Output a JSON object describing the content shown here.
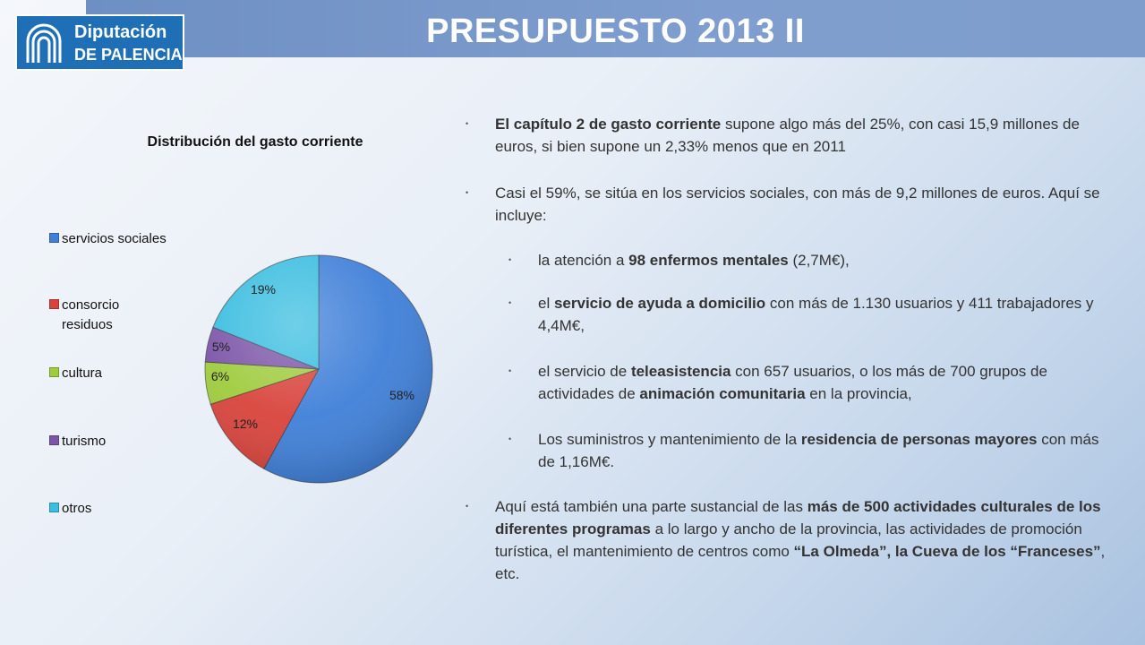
{
  "header": {
    "title": "PRESUPUESTO 2013 II"
  },
  "logo": {
    "line1": "Diputación",
    "line2": "DE PALENCIA",
    "color": "#1f6fb6"
  },
  "chart_data": {
    "type": "pie",
    "title": "Distribución  del gasto corriente",
    "categories": [
      "servicios sociales",
      "consorcio residuos",
      "cultura",
      "turismo",
      "otros"
    ],
    "legend": [
      "servicios sociales",
      "consorcio\nresiduos",
      "cultura",
      "turismo",
      "otros"
    ],
    "values": [
      58,
      12,
      6,
      5,
      19
    ],
    "labels": [
      "58%",
      "12%",
      "6%",
      "5%",
      "19%"
    ],
    "colors": [
      "#3f7fd8",
      "#d8433b",
      "#9fcb3e",
      "#7c55a8",
      "#39bde0"
    ],
    "legend_position": "left"
  },
  "bullets": [
    {
      "level": 1,
      "segments": [
        {
          "text": "El capítulo 2 de gasto corriente",
          "bold": true
        },
        {
          "text": " supone algo más del 25%, con casi 15,9 millones de euros, si bien supone un 2,33% menos que en 2011",
          "bold": false
        }
      ]
    },
    {
      "level": 1,
      "segments": [
        {
          "text": "Casi el 59%,  se sitúa en los servicios sociales, con más de 9,2 millones de euros. Aquí se incluye:",
          "bold": false
        }
      ]
    },
    {
      "level": 2,
      "segments": [
        {
          "text": "la atención a ",
          "bold": false
        },
        {
          "text": "98 enfermos mentales",
          "bold": true
        },
        {
          "text": " (2,7M€),",
          "bold": false
        }
      ]
    },
    {
      "level": 2,
      "segments": [
        {
          "text": " el ",
          "bold": false
        },
        {
          "text": "servicio de ayuda a domicilio",
          "bold": true
        },
        {
          "text": " con más de 1.130 usuarios y 411 trabajadores y 4,4M€,",
          "bold": false
        }
      ]
    },
    {
      "level": 2,
      "segments": [
        {
          "text": "el servicio de ",
          "bold": false
        },
        {
          "text": "teleasistencia",
          "bold": true
        },
        {
          "text": " con 657 usuarios, o los más de 700 grupos de actividades de ",
          "bold": false
        },
        {
          "text": "animación comunitaria",
          "bold": true
        },
        {
          "text": " en la provincia,",
          "bold": false
        }
      ]
    },
    {
      "level": 2,
      "segments": [
        {
          "text": "Los suministros y mantenimiento de la ",
          "bold": false
        },
        {
          "text": "residencia de personas mayores",
          "bold": true
        },
        {
          "text": " con  más de 1,16M€.",
          "bold": false
        }
      ]
    },
    {
      "level": 1,
      "segments": [
        {
          "text": "Aquí está también una parte sustancial de las ",
          "bold": false
        },
        {
          "text": "más de 500 actividades culturales  de los diferentes programas",
          "bold": true
        },
        {
          "text": " a lo largo y ancho de la provincia, las actividades de promoción turística, el mantenimiento de centros como ",
          "bold": false
        },
        {
          "text": "“La Olmeda”, la Cueva de los “Franceses”",
          "bold": true
        },
        {
          "text": ", etc.",
          "bold": false
        }
      ]
    }
  ]
}
